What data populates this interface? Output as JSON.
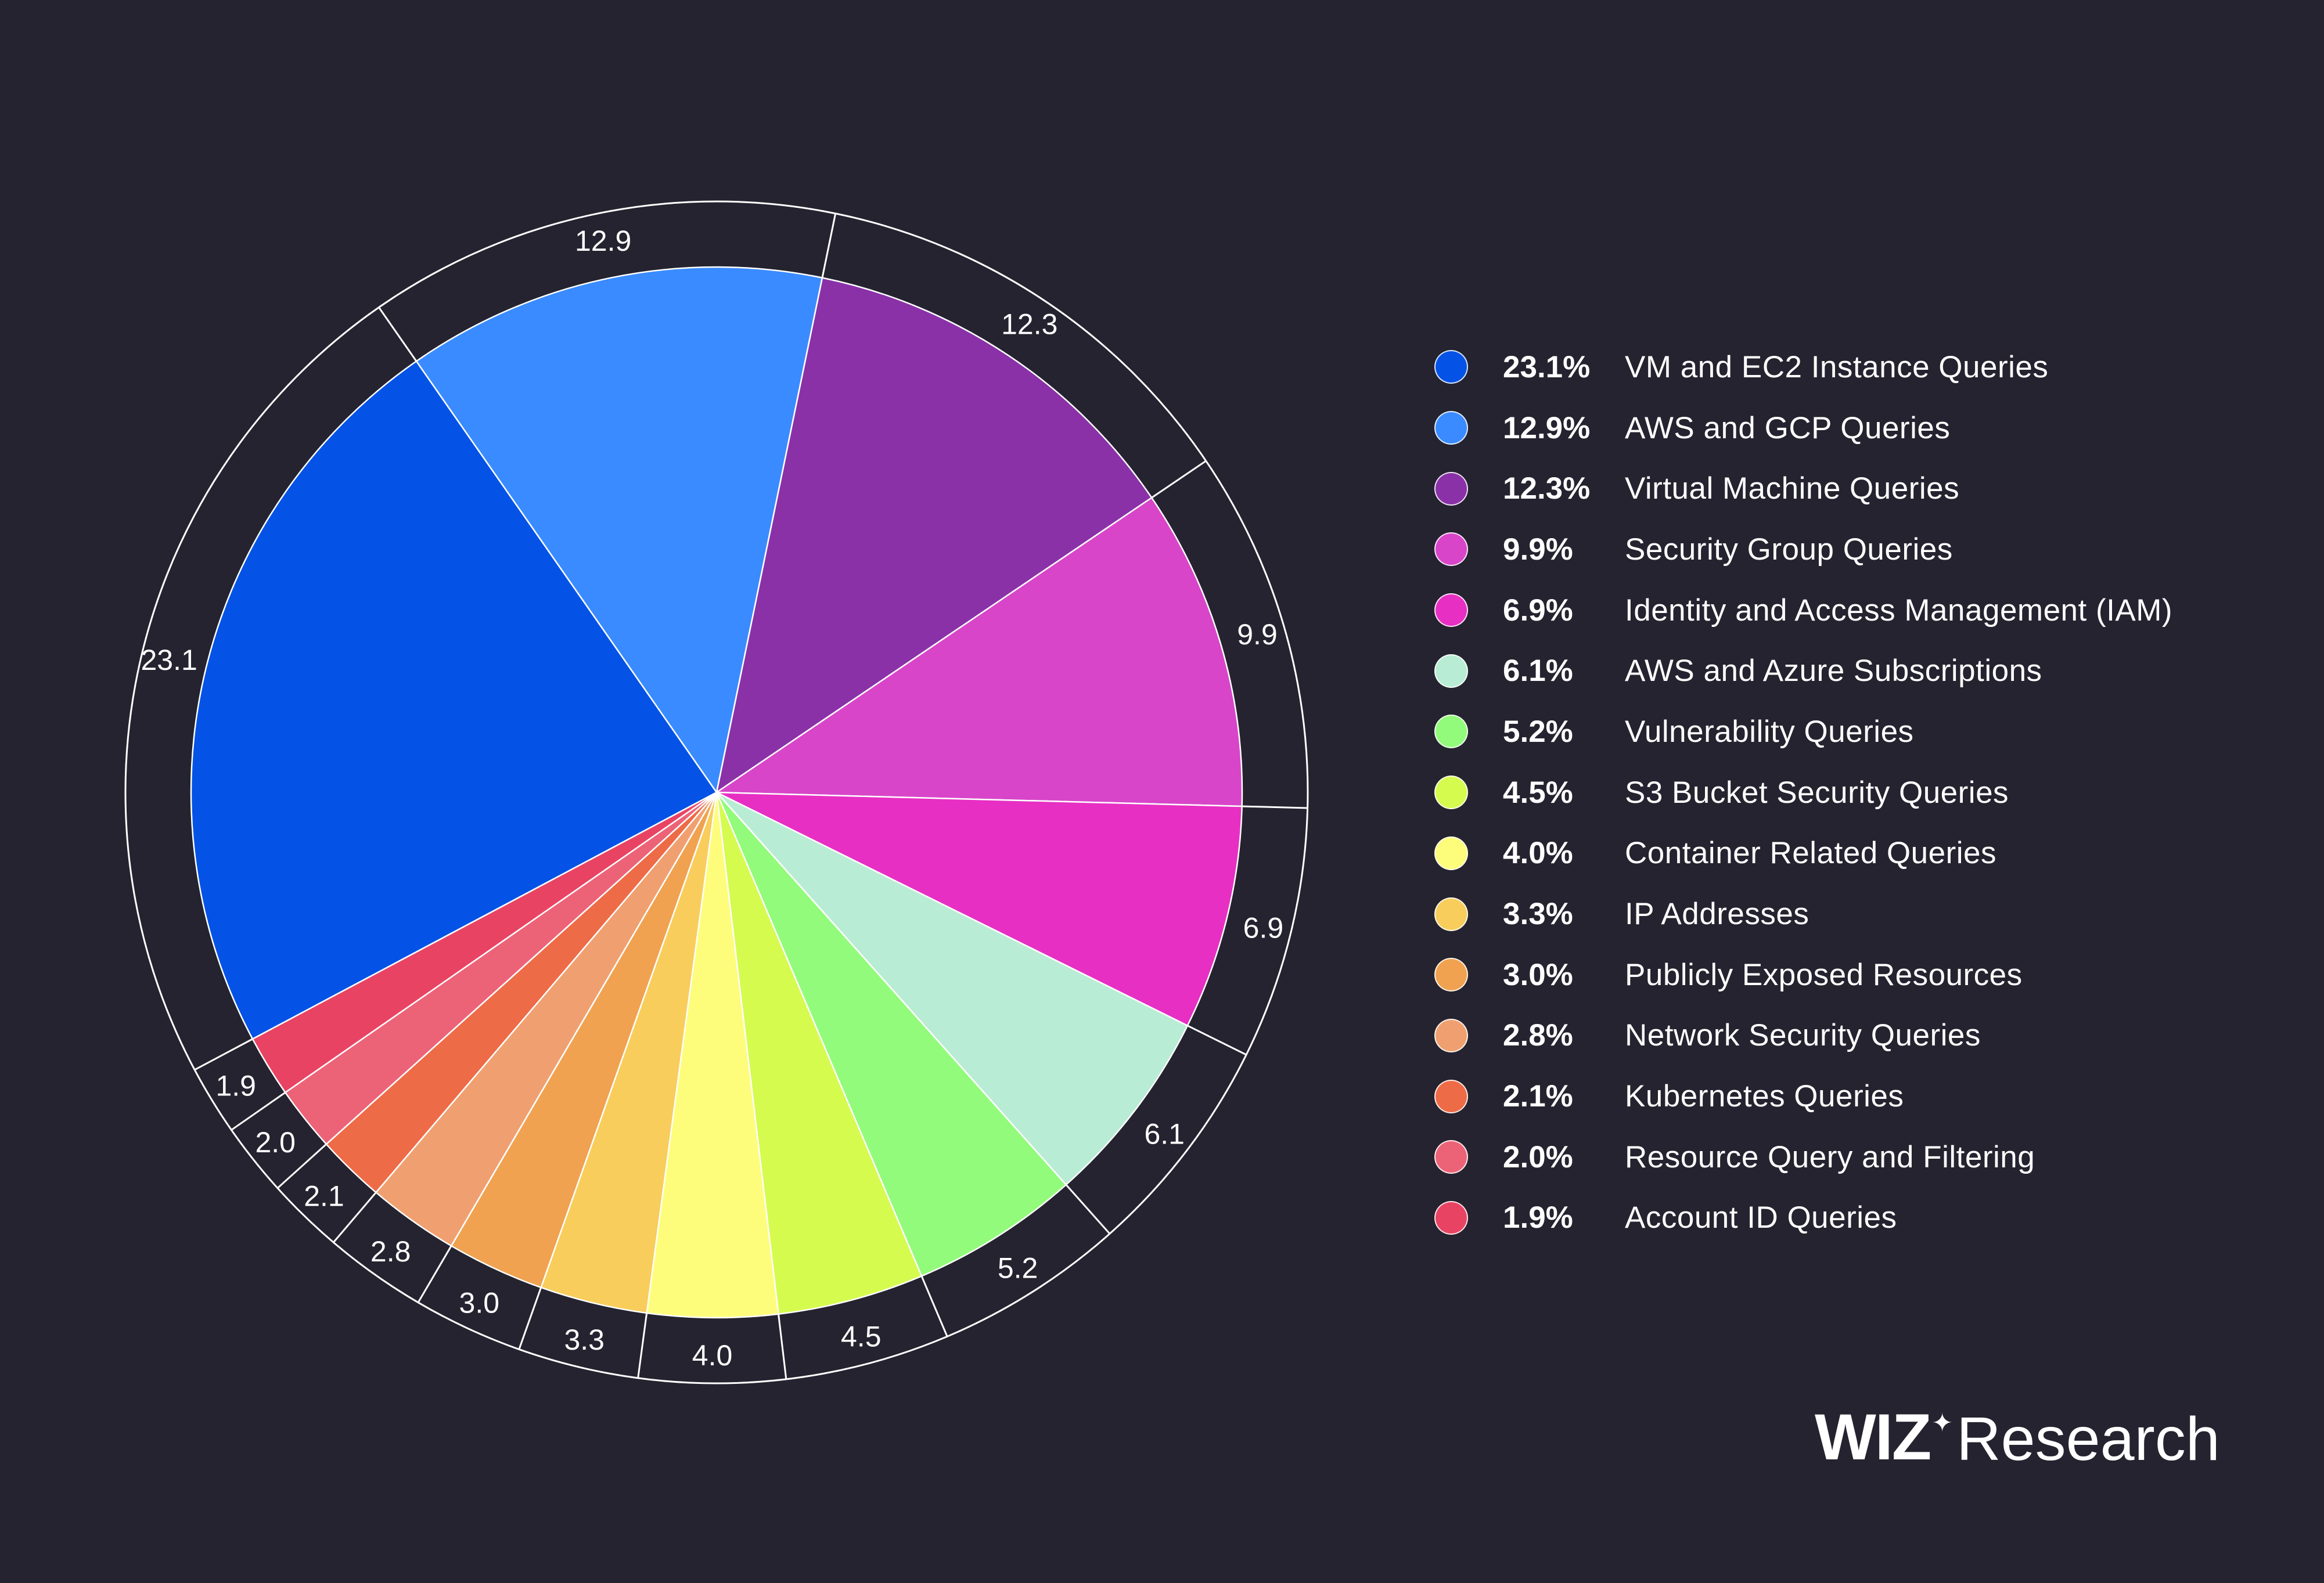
{
  "chart_data": {
    "type": "pie",
    "slices": [
      {
        "label": "VM and EC2 Instance Queries",
        "pct_label": "23.1%",
        "ring_label": "23.1",
        "value": 23.1,
        "color": "#0453e6"
      },
      {
        "label": "AWS and GCP Queries",
        "pct_label": "12.9%",
        "ring_label": "12.9",
        "value": 12.9,
        "color": "#3a8bff"
      },
      {
        "label": "Virtual Machine Queries",
        "pct_label": "12.3%",
        "ring_label": "12.3",
        "value": 12.3,
        "color": "#8a31a8"
      },
      {
        "label": "Security Group Queries",
        "pct_label": "9.9%",
        "ring_label": "9.9",
        "value": 9.9,
        "color": "#d845c9"
      },
      {
        "label": "Identity and Access Management (IAM)",
        "pct_label": "6.9%",
        "ring_label": "6.9",
        "value": 6.9,
        "color": "#e72fc3"
      },
      {
        "label": "AWS and Azure Subscriptions",
        "pct_label": "6.1%",
        "ring_label": "6.1",
        "value": 6.1,
        "color": "#b9ecd4"
      },
      {
        "label": "Vulnerability Queries",
        "pct_label": "5.2%",
        "ring_label": "5.2",
        "value": 5.2,
        "color": "#93fb7b"
      },
      {
        "label": "S3 Bucket Security Queries",
        "pct_label": "4.5%",
        "ring_label": "4.5",
        "value": 4.5,
        "color": "#d5fb4f"
      },
      {
        "label": "Container Related Queries",
        "pct_label": "4.0%",
        "ring_label": "4.0",
        "value": 4.0,
        "color": "#fdfd7b"
      },
      {
        "label": "IP Addresses",
        "pct_label": "3.3%",
        "ring_label": "3.3",
        "value": 3.3,
        "color": "#f8cd5b"
      },
      {
        "label": "Publicly Exposed Resources",
        "pct_label": "3.0%",
        "ring_label": "3.0",
        "value": 3.0,
        "color": "#f0a250"
      },
      {
        "label": "Network Security Queries",
        "pct_label": "2.8%",
        "ring_label": "2.8",
        "value": 2.8,
        "color": "#f0a070"
      },
      {
        "label": "Kubernetes Queries",
        "pct_label": "2.1%",
        "ring_label": "2.1",
        "value": 2.1,
        "color": "#ee6b47"
      },
      {
        "label": "Resource Query and Filtering",
        "pct_label": "2.0%",
        "ring_label": "2.0",
        "value": 2.0,
        "color": "#ec6378"
      },
      {
        "label": "Account ID Queries",
        "pct_label": "1.9%",
        "ring_label": "1.9",
        "value": 1.9,
        "color": "#e94363"
      }
    ],
    "title": "",
    "legend_position": "right"
  },
  "brand": {
    "wiz": "WIZ",
    "star": "✦",
    "research": "Research"
  },
  "colors": {
    "background": "#24232f",
    "ring_line": "#ffffff"
  }
}
